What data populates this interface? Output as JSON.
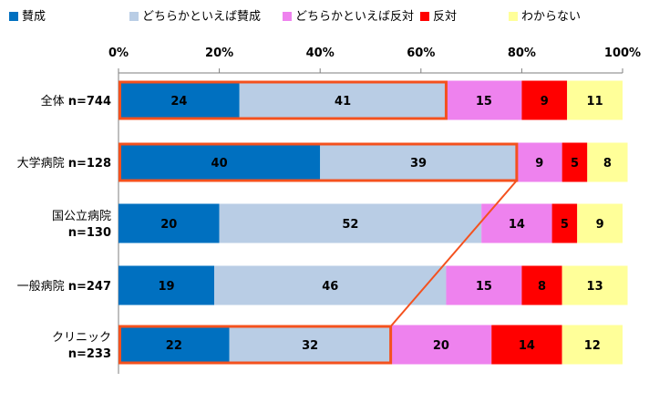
{
  "chart_data": {
    "type": "bar",
    "orientation": "horizontal",
    "stacked": true,
    "normalized": true,
    "xlim": [
      0,
      100
    ],
    "ticks": [
      0,
      20,
      40,
      60,
      80,
      100
    ],
    "tick_suffix": "%",
    "grid": false,
    "legend_position": "top",
    "categories": [
      {
        "name": "全体",
        "n": "n=744",
        "wrap": false
      },
      {
        "name": "大学病院",
        "n": "n=128",
        "wrap": false
      },
      {
        "name": "国公立病院",
        "n": "n=130",
        "wrap": true
      },
      {
        "name": "一般病院",
        "n": "n=247",
        "wrap": false
      },
      {
        "name": "クリニック",
        "n": "n=233",
        "wrap": true
      }
    ],
    "series": [
      {
        "name": "賛成",
        "color": "#0070C0",
        "values": [
          24,
          40,
          20,
          19,
          22
        ]
      },
      {
        "name": "どちらかといえば賛成",
        "color": "#B9CDE5",
        "values": [
          41,
          39,
          52,
          46,
          32
        ]
      },
      {
        "name": "どちらかといえば反対",
        "color": "#EE82EE",
        "values": [
          15,
          9,
          14,
          15,
          20
        ]
      },
      {
        "name": "反対",
        "color": "#FF0000",
        "values": [
          9,
          5,
          5,
          8,
          14
        ]
      },
      {
        "name": "わからない",
        "color": "#FFFF99",
        "values": [
          11,
          8,
          9,
          13,
          12
        ]
      }
    ],
    "highlight": {
      "color": "#F4511E",
      "outlined_series": [
        "賛成",
        "どちらかといえば賛成"
      ],
      "outlined_categories": [
        "全体",
        "大学病院",
        "クリニック"
      ],
      "connector_from": "大学病院",
      "connector_to": "クリニック"
    }
  }
}
